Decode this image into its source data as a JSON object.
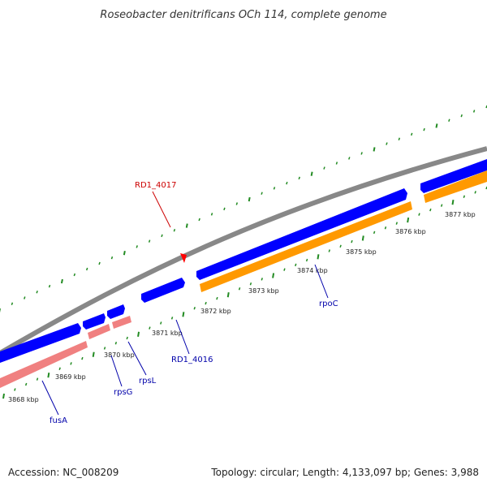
{
  "title": "Roseobacter denitrificans OCh 114, complete genome",
  "footer": {
    "accession": "Accession: NC_008209",
    "stats": "Topology: circular; Length: 4,133,097 bp; Genes: 3,988"
  },
  "colors": {
    "backbone": "#888888",
    "minor_tick": "#228B22",
    "major_tick": "#228B22",
    "gene_forward_cds": "#0000FF",
    "gene_reverse_cds": "#F08080",
    "gene_rpoc_shadow": "#FF9900",
    "label_blue": "#0000AA",
    "label_red": "#CC0000",
    "marker_red": "#FF0000"
  },
  "ticks": [
    {
      "label": "3868 kbp"
    },
    {
      "label": "3869 kbp"
    },
    {
      "label": "3870 kbp"
    },
    {
      "label": "3871 kbp"
    },
    {
      "label": "3872 kbp"
    },
    {
      "label": "3873 kbp"
    },
    {
      "label": "3874 kbp"
    },
    {
      "label": "3875 kbp"
    },
    {
      "label": "3876 kbp"
    },
    {
      "label": "3877 kbp"
    }
  ],
  "gene_labels": [
    {
      "name": "fusA",
      "color_key": "label_blue"
    },
    {
      "name": "rpsG",
      "color_key": "label_blue"
    },
    {
      "name": "rpsL",
      "color_key": "label_blue"
    },
    {
      "name": "RD1_4016",
      "color_key": "label_blue"
    },
    {
      "name": "rpoC",
      "color_key": "label_blue"
    },
    {
      "name": "RD1_4017",
      "color_key": "label_red"
    }
  ]
}
